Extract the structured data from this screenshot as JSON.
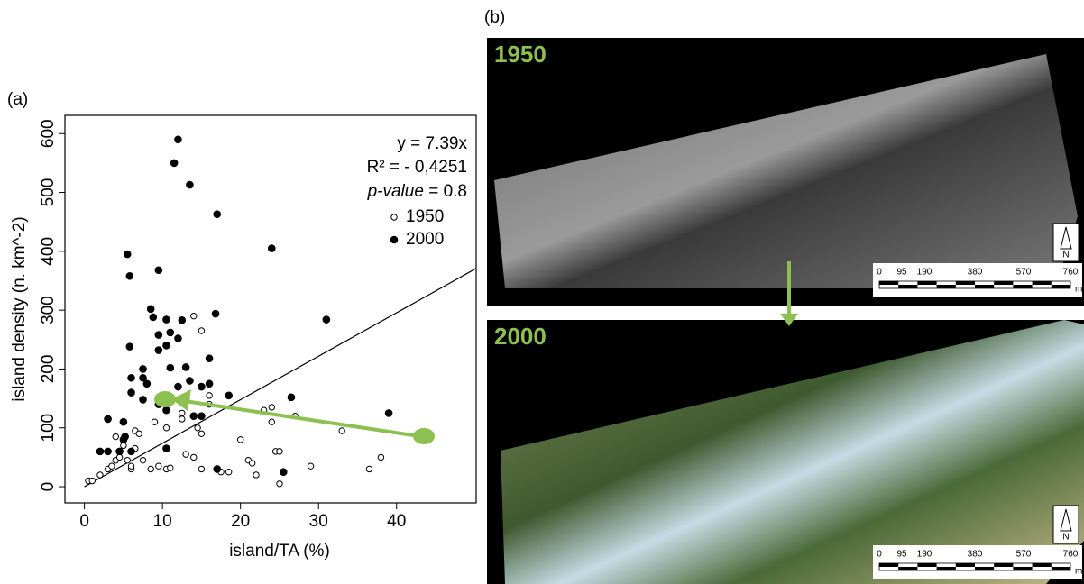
{
  "chart_data": {
    "type": "scatter",
    "xlabel": "island/TA (%)",
    "ylabel": "island density (n. km^-2)",
    "xlim": [
      -2.5,
      50.2
    ],
    "ylim": [
      -27.5,
      631
    ],
    "xticks": [
      0,
      10,
      20,
      30,
      40
    ],
    "yticks": [
      0,
      100,
      200,
      300,
      400,
      500,
      600
    ],
    "fit_slope": 7.39,
    "legend": "top-right",
    "annotations": [
      "y = 7.39x",
      "R² = - 0,4251",
      "p-value",
      " = 0.8"
    ],
    "series": [
      {
        "name": "1950",
        "color": "#000000",
        "marker": "open",
        "x": [
          0.5,
          1,
          2,
          3,
          3.5,
          4,
          4.5,
          4,
          5,
          5.5,
          6,
          6,
          6.5,
          6.5,
          7,
          7.5,
          8.5,
          9.5,
          10.5,
          11,
          13,
          14,
          15,
          16,
          16,
          15,
          17.5,
          18.5,
          20,
          21,
          21.5,
          22,
          23,
          24,
          24,
          24.5,
          25,
          25,
          27,
          29,
          33,
          36.5,
          38,
          12.5,
          14.5,
          14,
          15,
          10.5,
          12.5,
          9
        ],
        "values": [
          10,
          10,
          20,
          30,
          35,
          45,
          50,
          85,
          70,
          45,
          30,
          35,
          95,
          65,
          90,
          45,
          30,
          35,
          30,
          32,
          55,
          50,
          30,
          140,
          155,
          90,
          25,
          25,
          80,
          45,
          40,
          20,
          130,
          135,
          110,
          60,
          60,
          5,
          120,
          35,
          95,
          30,
          50,
          115,
          100,
          290,
          265,
          100,
          125,
          110
        ]
      },
      {
        "name": "2000",
        "color": "#000000",
        "marker": "filled",
        "x": [
          5.5,
          5.8,
          9.5,
          11.5,
          12,
          13.5,
          17,
          24,
          31,
          16.8,
          8.5,
          10.5,
          12.5,
          5.8,
          9.5,
          11,
          12,
          8.8,
          7.5,
          9.5,
          10.5,
          11,
          13,
          12,
          6,
          8,
          6,
          7.5,
          15,
          16,
          18.5,
          13.5,
          26.5,
          9.5,
          7.5,
          14,
          15,
          10.5,
          10.5,
          3,
          2,
          3,
          5,
          5,
          5.2,
          4.5,
          6,
          17,
          25.5,
          39,
          13,
          16
        ],
        "values": [
          395,
          358,
          368,
          550,
          590,
          513,
          463,
          405,
          284,
          294,
          302,
          284,
          283,
          238,
          258,
          262,
          252,
          288,
          200,
          232,
          240,
          202,
          203,
          170,
          160,
          175,
          185,
          185,
          170,
          218,
          155,
          180,
          152,
          140,
          148,
          120,
          120,
          130,
          65,
          115,
          60,
          60,
          110,
          80,
          85,
          60,
          60,
          30,
          25,
          125,
          150,
          175
        ]
      }
    ]
  },
  "figure": {
    "panel_labels": [
      "(a)",
      "(b)"
    ],
    "photos": [
      {
        "label": "1950",
        "scale_labels": [
          "0",
          "95",
          "190",
          "380",
          "570",
          "760"
        ],
        "unit": "m",
        "north": "N"
      },
      {
        "label": "2000",
        "scale_labels": [
          "0",
          "95",
          "190",
          "380",
          "570",
          "760"
        ],
        "unit": "m",
        "north": "N"
      }
    ]
  }
}
